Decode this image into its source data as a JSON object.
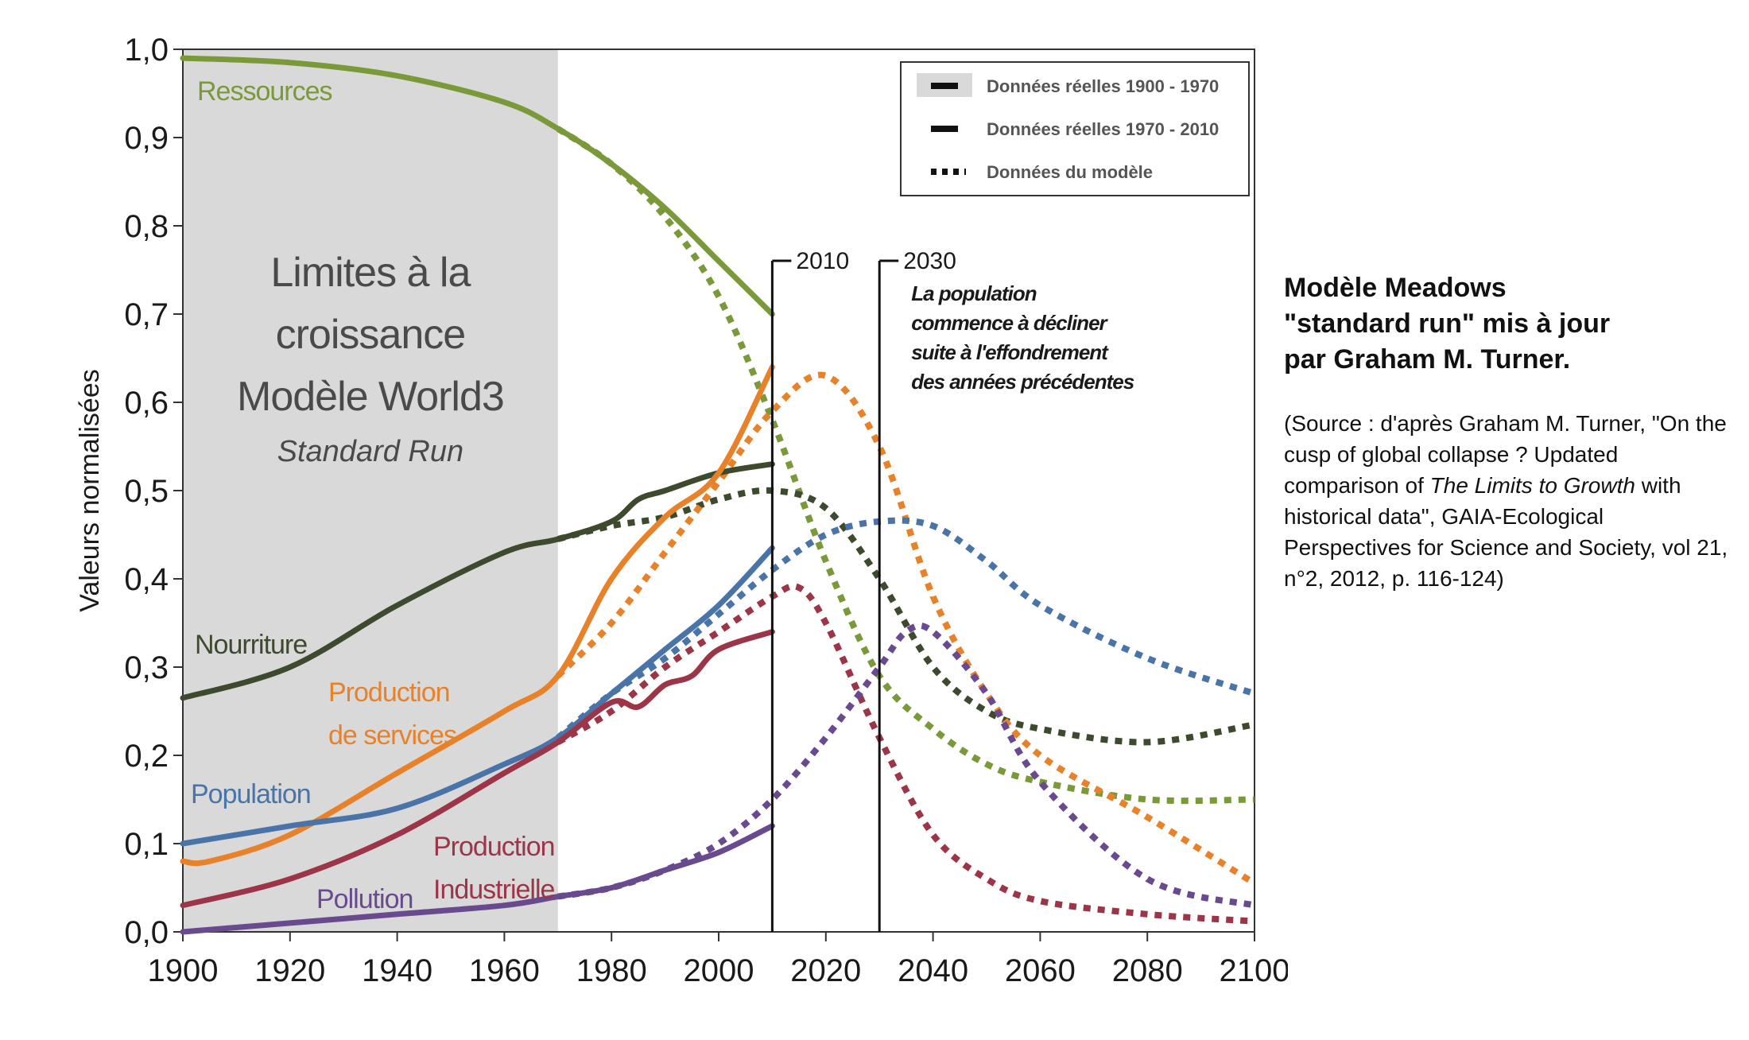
{
  "chart_data": {
    "type": "line",
    "title_lines": [
      "Limites à la",
      "croissance",
      "Modèle World3"
    ],
    "subtitle": "Standard Run",
    "xlabel": "",
    "ylabel": "Valeurs normalisées",
    "xlim": [
      1900,
      2100
    ],
    "ylim": [
      0,
      1
    ],
    "x_ticks": [
      "1900",
      "1920",
      "1940",
      "1960",
      "1980",
      "2000",
      "2020",
      "2040",
      "2060",
      "2080",
      "2100"
    ],
    "y_ticks": [
      "0,0",
      "0,1",
      "0,2",
      "0,3",
      "0,4",
      "0,5",
      "0,6",
      "0,7",
      "0,8",
      "0,9",
      "1,0"
    ],
    "shaded_range": [
      1900,
      1970
    ],
    "legend": {
      "position": "top-right",
      "entries": [
        {
          "label": "Données réelles 1900 - 1970",
          "style": "shaded"
        },
        {
          "label": "Données réelles 1970 - 2010",
          "style": "solid"
        },
        {
          "label": "Données du modèle",
          "style": "dotted"
        }
      ]
    },
    "markers": [
      {
        "year": 2010,
        "label": "2010"
      },
      {
        "year": 2030,
        "label": "2030",
        "note": [
          "La population",
          "commence à décliner",
          "suite à l'effondrement",
          "des années précédentes"
        ]
      }
    ],
    "series": [
      {
        "name": "Ressources",
        "color": "#7a9a3a",
        "observed": {
          "x": [
            1900,
            1920,
            1940,
            1960,
            1970,
            1980,
            1990,
            2000,
            2010
          ],
          "y": [
            0.99,
            0.985,
            0.97,
            0.94,
            0.91,
            0.87,
            0.82,
            0.76,
            0.7
          ]
        },
        "model": {
          "x": [
            1970,
            1980,
            1990,
            2000,
            2010,
            2020,
            2030,
            2040,
            2050,
            2060,
            2080,
            2100
          ],
          "y": [
            0.91,
            0.87,
            0.81,
            0.72,
            0.58,
            0.42,
            0.29,
            0.23,
            0.19,
            0.17,
            0.15,
            0.15
          ]
        }
      },
      {
        "name": "Nourriture",
        "color": "#3d4a2e",
        "observed": {
          "x": [
            1900,
            1920,
            1940,
            1960,
            1970,
            1980,
            1985,
            1990,
            2000,
            2010
          ],
          "y": [
            0.265,
            0.3,
            0.37,
            0.43,
            0.445,
            0.465,
            0.49,
            0.5,
            0.52,
            0.53
          ]
        },
        "model": {
          "x": [
            1970,
            1980,
            1990,
            2000,
            2010,
            2020,
            2030,
            2040,
            2050,
            2060,
            2080,
            2100
          ],
          "y": [
            0.445,
            0.46,
            0.47,
            0.49,
            0.5,
            0.48,
            0.4,
            0.3,
            0.25,
            0.23,
            0.215,
            0.235
          ]
        }
      },
      {
        "name": "Production de services",
        "color": "#e8822a",
        "observed": {
          "x": [
            1900,
            1905,
            1920,
            1940,
            1960,
            1970,
            1980,
            1990,
            2000,
            2010
          ],
          "y": [
            0.08,
            0.08,
            0.11,
            0.18,
            0.25,
            0.29,
            0.4,
            0.47,
            0.52,
            0.64
          ]
        },
        "model": {
          "x": [
            1970,
            1980,
            1990,
            2000,
            2010,
            2020,
            2030,
            2040,
            2050,
            2060,
            2080,
            2100
          ],
          "y": [
            0.29,
            0.35,
            0.43,
            0.51,
            0.59,
            0.63,
            0.55,
            0.38,
            0.27,
            0.2,
            0.13,
            0.055
          ]
        }
      },
      {
        "name": "Population",
        "color": "#4a74a8",
        "observed": {
          "x": [
            1900,
            1920,
            1940,
            1960,
            1970,
            1980,
            1990,
            2000,
            2010
          ],
          "y": [
            0.1,
            0.12,
            0.14,
            0.19,
            0.22,
            0.27,
            0.32,
            0.37,
            0.435
          ]
        },
        "model": {
          "x": [
            1970,
            1980,
            1990,
            2000,
            2010,
            2020,
            2030,
            2040,
            2050,
            2060,
            2080,
            2100
          ],
          "y": [
            0.22,
            0.27,
            0.31,
            0.36,
            0.41,
            0.45,
            0.465,
            0.46,
            0.42,
            0.37,
            0.31,
            0.27
          ]
        }
      },
      {
        "name": "Production Industrielle",
        "color": "#9b3547",
        "observed": {
          "x": [
            1900,
            1920,
            1940,
            1960,
            1970,
            1980,
            1985,
            1990,
            1995,
            2000,
            2010
          ],
          "y": [
            0.03,
            0.06,
            0.11,
            0.18,
            0.215,
            0.26,
            0.255,
            0.28,
            0.29,
            0.32,
            0.34
          ]
        },
        "model": {
          "x": [
            1970,
            1980,
            1990,
            2000,
            2010,
            2015,
            2020,
            2030,
            2040,
            2050,
            2060,
            2080,
            2100
          ],
          "y": [
            0.215,
            0.25,
            0.3,
            0.34,
            0.38,
            0.39,
            0.35,
            0.22,
            0.11,
            0.06,
            0.035,
            0.02,
            0.012
          ]
        }
      },
      {
        "name": "Pollution",
        "color": "#6a4a8e",
        "observed": {
          "x": [
            1900,
            1920,
            1940,
            1960,
            1970,
            1980,
            1990,
            2000,
            2010
          ],
          "y": [
            0.0,
            0.01,
            0.02,
            0.03,
            0.04,
            0.05,
            0.07,
            0.09,
            0.12
          ]
        },
        "model": {
          "x": [
            1970,
            1980,
            1990,
            2000,
            2010,
            2020,
            2030,
            2035,
            2040,
            2050,
            2060,
            2080,
            2100
          ],
          "y": [
            0.04,
            0.05,
            0.07,
            0.1,
            0.15,
            0.22,
            0.3,
            0.34,
            0.34,
            0.27,
            0.17,
            0.06,
            0.03
          ]
        }
      }
    ],
    "series_labels": [
      {
        "lines": [
          "Ressources"
        ],
        "color": "#7a9a3a"
      },
      {
        "lines": [
          "Nourriture"
        ],
        "color": "#3d4a2e"
      },
      {
        "lines": [
          "Production",
          "de services"
        ],
        "color": "#e8822a"
      },
      {
        "lines": [
          "Population"
        ],
        "color": "#4a74a8"
      },
      {
        "lines": [
          "Production",
          "Industrielle"
        ],
        "color": "#9b3547"
      },
      {
        "lines": [
          "Pollution"
        ],
        "color": "#6a4a8e"
      }
    ]
  },
  "side_text": {
    "title_lines": [
      "Modèle Meadows",
      "\"standard run\" mis à jour",
      "par Graham M. Turner."
    ],
    "source_before": "(Source : d'après Graham M. Turner, \"On the cusp of global collapse ? Updated comparison of ",
    "source_italic": "The Limits to Growth",
    "source_after": " with historical data\", GAIA-Ecological Perspectives for Science and Society, vol 21, n°2, 2012, p. 116-124)"
  }
}
